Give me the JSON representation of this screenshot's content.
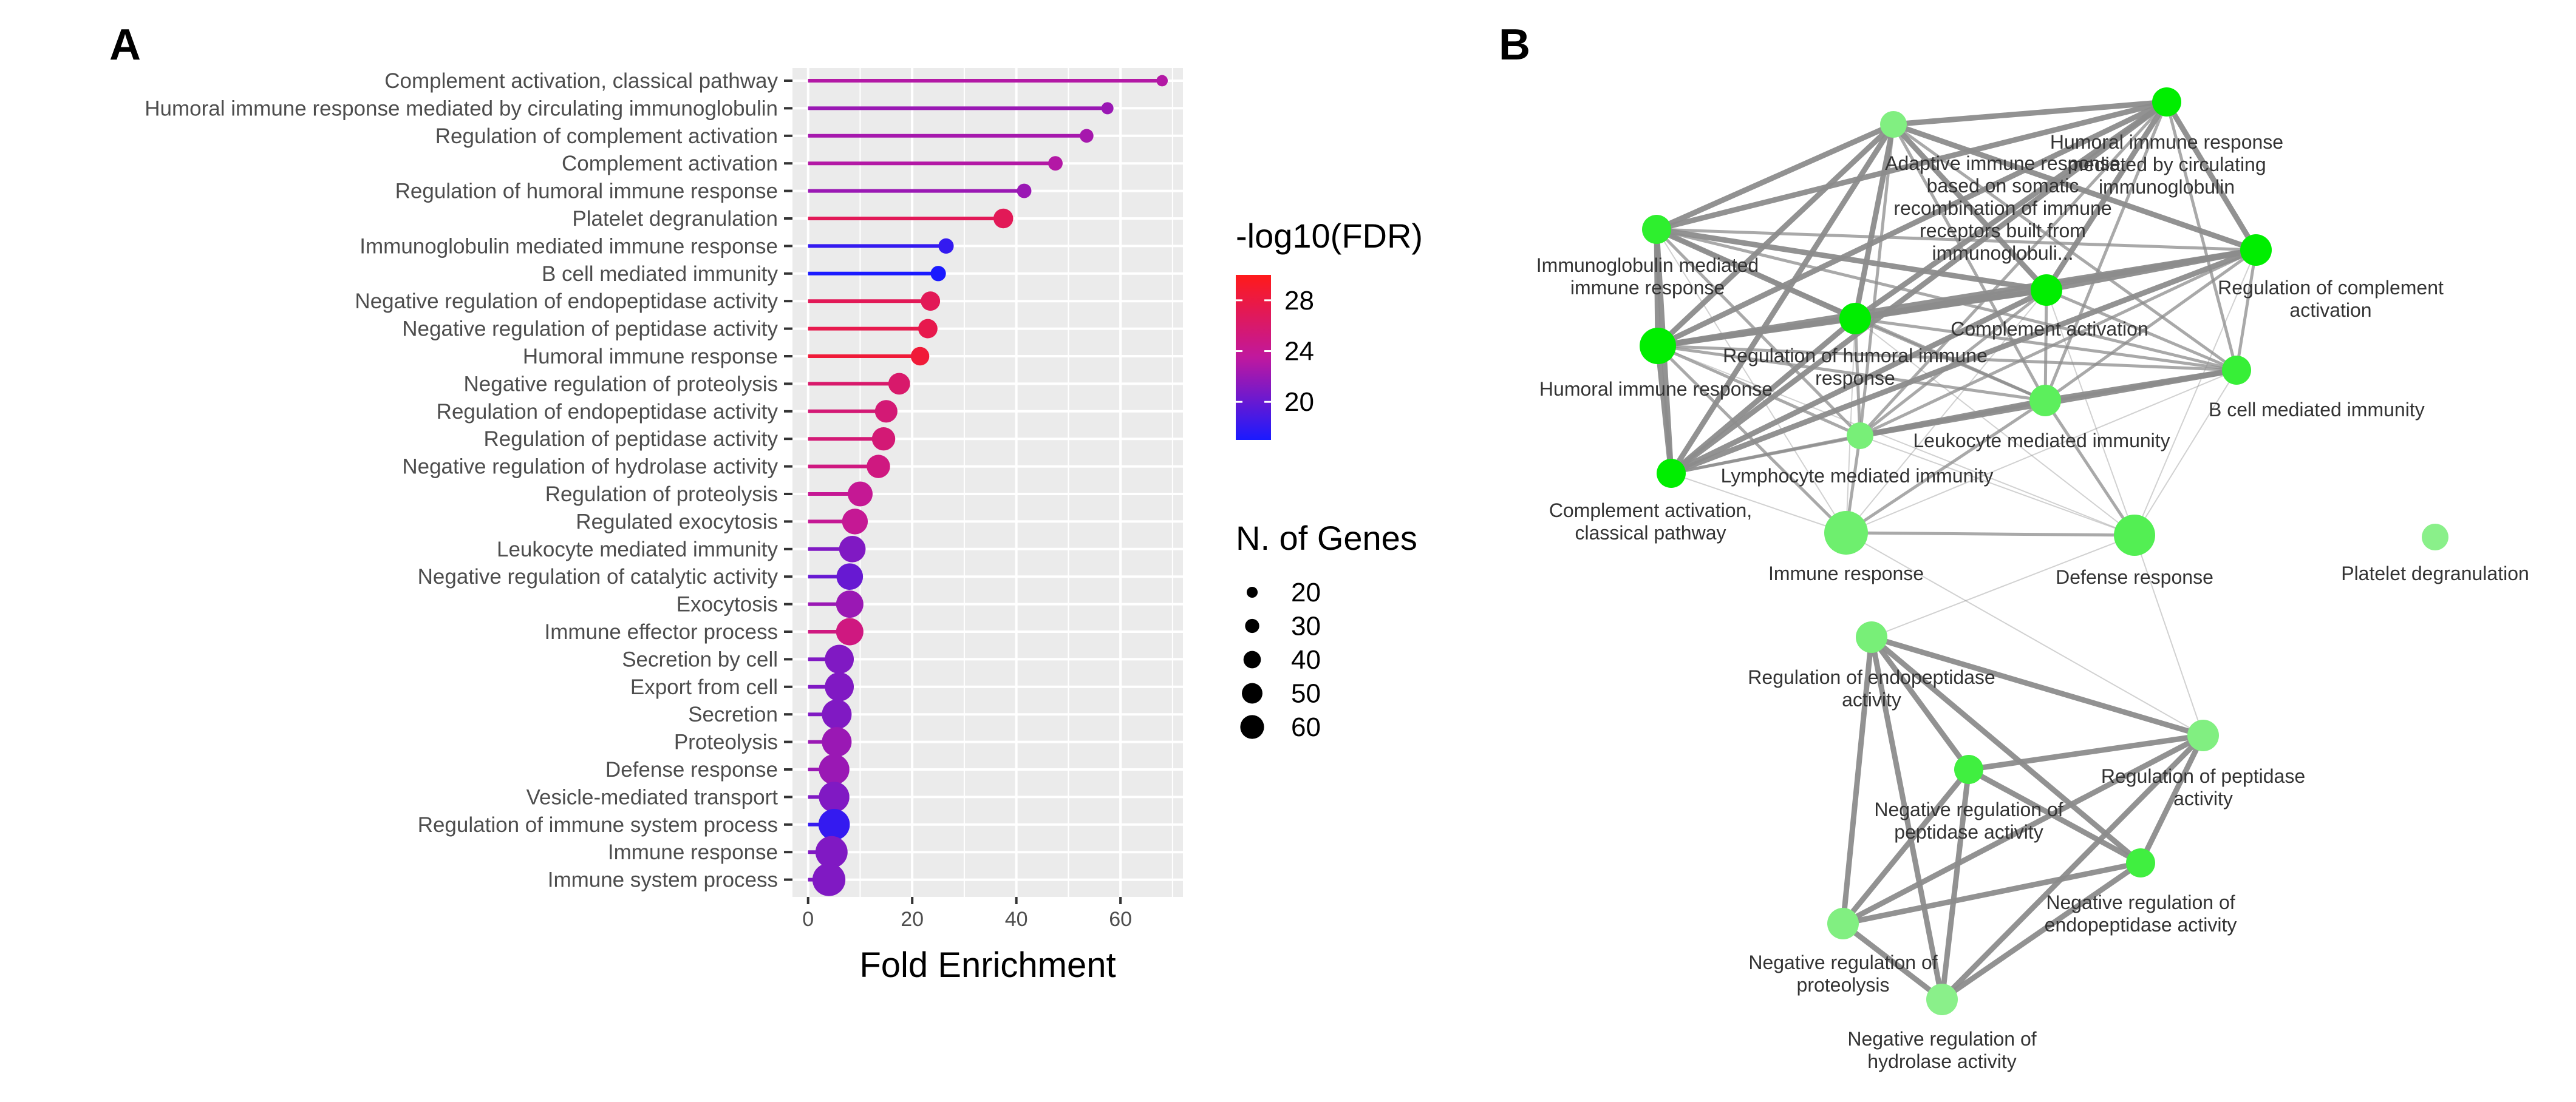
{
  "panels": {
    "a_letter": "A",
    "b_letter": "B"
  },
  "colors": {
    "high": "#ff1a1a",
    "mid": "#c0189e",
    "low": "#1a1aff",
    "panel_bg": "#ebebeb",
    "edge": "#8c8c8c",
    "node_strong": "#00ee00",
    "node_weak": "#b8f0b8"
  },
  "chart_data": [
    {
      "type": "lollipop",
      "xlabel": "Fold Enrichment",
      "xlim": [
        -3,
        72
      ],
      "x_ticks": [
        0,
        20,
        40,
        60
      ],
      "grid": true,
      "categories": [
        "Complement activation, classical pathway",
        "Humoral immune response mediated by circulating immunoglobulin",
        "Regulation of complement activation",
        "Complement activation",
        "Regulation of humoral immune response",
        "Platelet degranulation",
        "Immunoglobulin mediated immune response",
        "B cell mediated immunity",
        "Negative regulation of endopeptidase activity",
        "Negative regulation of peptidase activity",
        "Humoral immune response",
        "Negative regulation of proteolysis",
        "Regulation of endopeptidase activity",
        "Regulation of peptidase activity",
        "Negative regulation of hydrolase activity",
        "Regulation of proteolysis",
        "Regulated exocytosis",
        "Leukocyte mediated immunity",
        "Negative regulation of catalytic activity",
        "Exocytosis",
        "Immune effector process",
        "Secretion by cell",
        "Export from cell",
        "Secretion",
        "Proteolysis",
        "Defense response",
        "Vesicle-mediated transport",
        "Regulation of immune system process",
        "Immune response",
        "Immune system process"
      ],
      "fold_enrichment": [
        68,
        57.5,
        53.5,
        47.5,
        41.5,
        37.5,
        26.5,
        25,
        23.5,
        23,
        21.5,
        17.5,
        15,
        14.5,
        13.5,
        10,
        9,
        8.5,
        8,
        8,
        8,
        6,
        6,
        5.5,
        5.5,
        5,
        5,
        5,
        4.5,
        4
      ],
      "neg_log10_fdr": [
        23,
        22,
        22.5,
        23,
        22,
        27,
        18,
        17,
        27,
        27.5,
        28.5,
        26,
        25.5,
        25.5,
        25,
        24,
        24,
        21,
        20,
        22,
        25,
        21,
        21,
        21,
        22,
        22,
        21,
        18,
        21,
        21
      ],
      "n_genes": [
        14,
        16,
        20,
        22,
        22,
        35,
        24,
        24,
        34,
        34,
        32,
        40,
        42,
        44,
        44,
        48,
        50,
        52,
        52,
        54,
        54,
        58,
        58,
        60,
        60,
        62,
        62,
        64,
        66,
        68
      ],
      "color_legend": {
        "title": "-log10(FDR)",
        "ticks": [
          28,
          24,
          20
        ],
        "range": [
          17,
          30
        ]
      },
      "size_legend": {
        "title": "N. of Genes",
        "values": [
          20,
          30,
          40,
          50,
          60
        ]
      }
    },
    {
      "type": "network",
      "nodes": [
        {
          "id": "adaptive",
          "label": [
            "Adaptive immune response",
            "based on somatic",
            "recombination of immune",
            "receptors built from",
            "immunoglobuli..."
          ],
          "size": 22,
          "strength": 0.3
        },
        {
          "id": "humoral_circ",
          "label": [
            "Humoral immune response",
            "mediated by circulating",
            "immunoglobulin"
          ],
          "size": 24,
          "strength": 1
        },
        {
          "id": "ig_mediated",
          "label": [
            "Immunoglobulin mediated",
            "immune response"
          ],
          "size": 24,
          "strength": 0.75
        },
        {
          "id": "reg_complement",
          "label": [
            "Regulation of complement",
            "activation"
          ],
          "size": 26,
          "strength": 1
        },
        {
          "id": "complement",
          "label": [
            "Complement activation"
          ],
          "size": 26,
          "strength": 1
        },
        {
          "id": "reg_humoral",
          "label": [
            "Regulation of humoral immune",
            "response"
          ],
          "size": 26,
          "strength": 1
        },
        {
          "id": "humoral",
          "label": [
            "Humoral immune response"
          ],
          "size": 30,
          "strength": 1
        },
        {
          "id": "b_cell",
          "label": [
            "B cell mediated immunity"
          ],
          "size": 24,
          "strength": 0.7
        },
        {
          "id": "leukocyte",
          "label": [
            "Leukocyte mediated immunity"
          ],
          "size": 26,
          "strength": 0.5
        },
        {
          "id": "lymphocyte",
          "label": [
            "Lymphocyte mediated immunity"
          ],
          "size": 22,
          "strength": 0.35
        },
        {
          "id": "comp_classical",
          "label": [
            "Complement activation,",
            "classical pathway"
          ],
          "size": 24,
          "strength": 1
        },
        {
          "id": "immune_response",
          "label": [
            "Immune response"
          ],
          "size": 36,
          "strength": 0.4
        },
        {
          "id": "defense",
          "label": [
            "Defense response"
          ],
          "size": 34,
          "strength": 0.55
        },
        {
          "id": "platelet",
          "label": [
            "Platelet degranulation"
          ],
          "size": 22,
          "strength": 0.25
        },
        {
          "id": "reg_endo",
          "label": [
            "Regulation of endopeptidase",
            "activity"
          ],
          "size": 26,
          "strength": 0.35
        },
        {
          "id": "reg_pep",
          "label": [
            "Regulation of peptidase",
            "activity"
          ],
          "size": 26,
          "strength": 0.3
        },
        {
          "id": "neg_pep",
          "label": [
            "Negative regulation of",
            "peptidase activity"
          ],
          "size": 24,
          "strength": 0.65
        },
        {
          "id": "neg_endo",
          "label": [
            "Negative regulation of",
            "endopeptidase activity"
          ],
          "size": 24,
          "strength": 0.65
        },
        {
          "id": "neg_prot",
          "label": [
            "Negative regulation of",
            "proteolysis"
          ],
          "size": 26,
          "strength": 0.3
        },
        {
          "id": "neg_hydro",
          "label": [
            "Negative regulation of",
            "hydrolase activity"
          ],
          "size": 26,
          "strength": 0.25
        }
      ],
      "edges": [
        [
          "adaptive",
          "humoral_circ",
          3
        ],
        [
          "adaptive",
          "ig_mediated",
          3
        ],
        [
          "adaptive",
          "reg_complement",
          3
        ],
        [
          "adaptive",
          "complement",
          3
        ],
        [
          "adaptive",
          "reg_humoral",
          3
        ],
        [
          "adaptive",
          "humoral",
          3
        ],
        [
          "adaptive",
          "b_cell",
          2
        ],
        [
          "adaptive",
          "leukocyte",
          2
        ],
        [
          "adaptive",
          "lymphocyte",
          2
        ],
        [
          "adaptive",
          "comp_classical",
          3
        ],
        [
          "humoral_circ",
          "ig_mediated",
          3
        ],
        [
          "humoral_circ",
          "reg_complement",
          3
        ],
        [
          "humoral_circ",
          "complement",
          3
        ],
        [
          "humoral_circ",
          "reg_humoral",
          3
        ],
        [
          "humoral_circ",
          "humoral",
          3
        ],
        [
          "humoral_circ",
          "b_cell",
          2
        ],
        [
          "humoral_circ",
          "leukocyte",
          2
        ],
        [
          "humoral_circ",
          "comp_classical",
          3
        ],
        [
          "humoral_circ",
          "lymphocyte",
          2
        ],
        [
          "ig_mediated",
          "humoral",
          3
        ],
        [
          "ig_mediated",
          "complement",
          3
        ],
        [
          "ig_mediated",
          "reg_humoral",
          3
        ],
        [
          "ig_mediated",
          "b_cell",
          2
        ],
        [
          "ig_mediated",
          "comp_classical",
          3
        ],
        [
          "ig_mediated",
          "lymphocyte",
          2
        ],
        [
          "ig_mediated",
          "leukocyte",
          2
        ],
        [
          "ig_mediated",
          "immune_response",
          1
        ],
        [
          "ig_mediated",
          "reg_complement",
          2
        ],
        [
          "reg_complement",
          "complement",
          3
        ],
        [
          "reg_complement",
          "reg_humoral",
          3
        ],
        [
          "reg_complement",
          "humoral",
          3
        ],
        [
          "reg_complement",
          "b_cell",
          2
        ],
        [
          "reg_complement",
          "leukocyte",
          2
        ],
        [
          "reg_complement",
          "comp_classical",
          3
        ],
        [
          "reg_complement",
          "defense",
          1
        ],
        [
          "reg_complement",
          "lymphocyte",
          2
        ],
        [
          "complement",
          "reg_humoral",
          3
        ],
        [
          "complement",
          "humoral",
          3
        ],
        [
          "complement",
          "b_cell",
          2
        ],
        [
          "complement",
          "leukocyte",
          2
        ],
        [
          "complement",
          "comp_classical",
          3
        ],
        [
          "complement",
          "lymphocyte",
          2
        ],
        [
          "complement",
          "defense",
          1
        ],
        [
          "complement",
          "immune_response",
          1
        ],
        [
          "reg_humoral",
          "humoral",
          3
        ],
        [
          "reg_humoral",
          "b_cell",
          2
        ],
        [
          "reg_humoral",
          "leukocyte",
          2
        ],
        [
          "reg_humoral",
          "comp_classical",
          3
        ],
        [
          "reg_humoral",
          "lymphocyte",
          2
        ],
        [
          "reg_humoral",
          "immune_response",
          1
        ],
        [
          "reg_humoral",
          "defense",
          1
        ],
        [
          "humoral",
          "b_cell",
          2
        ],
        [
          "humoral",
          "leukocyte",
          2
        ],
        [
          "humoral",
          "comp_classical",
          3
        ],
        [
          "humoral",
          "lymphocyte",
          2
        ],
        [
          "humoral",
          "immune_response",
          2
        ],
        [
          "humoral",
          "defense",
          1
        ],
        [
          "b_cell",
          "leukocyte",
          3
        ],
        [
          "b_cell",
          "lymphocyte",
          3
        ],
        [
          "b_cell",
          "defense",
          1
        ],
        [
          "b_cell",
          "immune_response",
          1
        ],
        [
          "leukocyte",
          "lymphocyte",
          3
        ],
        [
          "leukocyte",
          "immune_response",
          2
        ],
        [
          "leukocyte",
          "defense",
          2
        ],
        [
          "leukocyte",
          "comp_classical",
          2
        ],
        [
          "lymphocyte",
          "comp_classical",
          2
        ],
        [
          "lymphocyte",
          "immune_response",
          2
        ],
        [
          "lymphocyte",
          "defense",
          1
        ],
        [
          "comp_classical",
          "immune_response",
          1
        ],
        [
          "immune_response",
          "defense",
          2
        ],
        [
          "immune_response",
          "reg_pep",
          1
        ],
        [
          "defense",
          "reg_endo",
          1
        ],
        [
          "defense",
          "reg_pep",
          1
        ],
        [
          "reg_endo",
          "reg_pep",
          3
        ],
        [
          "reg_endo",
          "neg_pep",
          3
        ],
        [
          "reg_endo",
          "neg_endo",
          3
        ],
        [
          "reg_endo",
          "neg_prot",
          3
        ],
        [
          "reg_endo",
          "neg_hydro",
          3
        ],
        [
          "reg_pep",
          "neg_pep",
          3
        ],
        [
          "reg_pep",
          "neg_endo",
          3
        ],
        [
          "reg_pep",
          "neg_prot",
          3
        ],
        [
          "reg_pep",
          "neg_hydro",
          3
        ],
        [
          "neg_pep",
          "neg_endo",
          3
        ],
        [
          "neg_pep",
          "neg_prot",
          3
        ],
        [
          "neg_pep",
          "neg_hydro",
          3
        ],
        [
          "neg_endo",
          "neg_prot",
          3
        ],
        [
          "neg_endo",
          "neg_hydro",
          3
        ],
        [
          "neg_prot",
          "neg_hydro",
          3
        ]
      ]
    }
  ]
}
